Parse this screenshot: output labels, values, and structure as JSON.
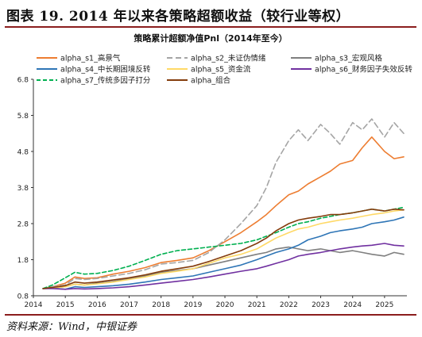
{
  "figure": {
    "title": "图表 19. 2014 年以来各策略超额收益（较行业等权）",
    "source": "资料来源：Wind，中银证券"
  },
  "chart_data": {
    "type": "line",
    "title": "策略累计超额净值Pnl（2014年至今）",
    "xlabel": "",
    "ylabel": "",
    "x_ticks": [
      "2014",
      "2015",
      "2016",
      "2017",
      "2018",
      "2019",
      "2020",
      "2021",
      "2022",
      "2023",
      "2024",
      "2025"
    ],
    "y_ticks": [
      "0.8",
      "1.8",
      "2.8",
      "3.8",
      "4.8",
      "5.8",
      "6.8"
    ],
    "xlim": [
      2014.0,
      2025.7
    ],
    "ylim": [
      0.8,
      6.8
    ],
    "grid": false,
    "legend_position": "top",
    "x": [
      2014.3,
      2014.6,
      2015.0,
      2015.3,
      2015.6,
      2016.0,
      2016.5,
      2017.0,
      2017.5,
      2018.0,
      2018.5,
      2019.0,
      2019.5,
      2020.0,
      2020.5,
      2021.0,
      2021.3,
      2021.6,
      2022.0,
      2022.3,
      2022.6,
      2023.0,
      2023.3,
      2023.6,
      2024.0,
      2024.3,
      2024.6,
      2025.0,
      2025.3,
      2025.6
    ],
    "series": [
      {
        "name": "alpha_s1_高景气",
        "color": "#ed7d31",
        "dash": "",
        "values": [
          1.0,
          1.05,
          1.15,
          1.32,
          1.28,
          1.3,
          1.4,
          1.48,
          1.58,
          1.72,
          1.78,
          1.85,
          2.05,
          2.3,
          2.55,
          2.85,
          3.05,
          3.3,
          3.6,
          3.7,
          3.9,
          4.1,
          4.25,
          4.45,
          4.55,
          4.9,
          5.2,
          4.8,
          4.6,
          4.65
        ]
      },
      {
        "name": "alpha_s2_未证伪情绪",
        "color": "#a5a5a5",
        "dash": "7,4",
        "values": [
          1.0,
          1.05,
          1.1,
          1.28,
          1.25,
          1.28,
          1.35,
          1.42,
          1.52,
          1.68,
          1.72,
          1.78,
          2.0,
          2.35,
          2.8,
          3.3,
          3.8,
          4.5,
          5.1,
          5.4,
          5.1,
          5.55,
          5.3,
          5.0,
          5.6,
          5.4,
          5.7,
          5.2,
          5.6,
          5.3
        ]
      },
      {
        "name": "alpha_s3_宏观风格",
        "color": "#7f7f7f",
        "dash": "",
        "values": [
          1.0,
          1.02,
          1.05,
          1.12,
          1.1,
          1.15,
          1.2,
          1.28,
          1.35,
          1.45,
          1.5,
          1.55,
          1.65,
          1.75,
          1.85,
          1.95,
          2.0,
          2.1,
          2.15,
          2.1,
          2.05,
          2.1,
          2.05,
          2.0,
          2.05,
          2.0,
          1.95,
          1.9,
          2.0,
          1.95
        ]
      },
      {
        "name": "alpha_s4_中长期困境反转",
        "color": "#2e75b6",
        "dash": "",
        "values": [
          1.0,
          1.01,
          0.98,
          1.05,
          1.03,
          1.05,
          1.08,
          1.12,
          1.18,
          1.25,
          1.3,
          1.35,
          1.45,
          1.55,
          1.65,
          1.8,
          1.9,
          2.0,
          2.1,
          2.2,
          2.35,
          2.45,
          2.55,
          2.6,
          2.65,
          2.7,
          2.8,
          2.85,
          2.9,
          2.98
        ]
      },
      {
        "name": "alpha_s5_资金流",
        "color": "#ffd966",
        "dash": "",
        "values": [
          1.0,
          1.02,
          1.05,
          1.12,
          1.1,
          1.13,
          1.18,
          1.25,
          1.32,
          1.42,
          1.48,
          1.55,
          1.7,
          1.85,
          1.95,
          2.1,
          2.25,
          2.4,
          2.55,
          2.65,
          2.7,
          2.8,
          2.85,
          2.9,
          2.95,
          3.0,
          3.05,
          3.1,
          3.15,
          3.18
        ]
      },
      {
        "name": "alpha_s6_财务因子失效反转",
        "color": "#7030a0",
        "dash": "",
        "values": [
          1.0,
          1.0,
          0.98,
          1.0,
          0.99,
          1.0,
          1.02,
          1.05,
          1.1,
          1.15,
          1.2,
          1.25,
          1.32,
          1.4,
          1.48,
          1.55,
          1.62,
          1.7,
          1.8,
          1.9,
          1.95,
          2.0,
          2.05,
          2.1,
          2.15,
          2.18,
          2.2,
          2.25,
          2.2,
          2.18
        ]
      },
      {
        "name": "alpha_s7_传统多因子打分",
        "color": "#00b050",
        "dash": "5,3",
        "values": [
          1.0,
          1.1,
          1.3,
          1.45,
          1.4,
          1.42,
          1.5,
          1.62,
          1.78,
          1.95,
          2.05,
          2.1,
          2.15,
          2.2,
          2.25,
          2.35,
          2.45,
          2.55,
          2.7,
          2.8,
          2.85,
          2.95,
          3.0,
          3.05,
          3.1,
          3.15,
          3.2,
          3.15,
          3.2,
          3.25
        ]
      },
      {
        "name": "alpha_组合",
        "color": "#843c0c",
        "dash": "",
        "values": [
          1.0,
          1.03,
          1.08,
          1.18,
          1.15,
          1.18,
          1.24,
          1.3,
          1.38,
          1.48,
          1.55,
          1.62,
          1.75,
          1.9,
          2.05,
          2.25,
          2.4,
          2.6,
          2.8,
          2.9,
          2.95,
          3.0,
          3.05,
          3.05,
          3.1,
          3.15,
          3.2,
          3.15,
          3.2,
          3.18
        ]
      }
    ]
  }
}
